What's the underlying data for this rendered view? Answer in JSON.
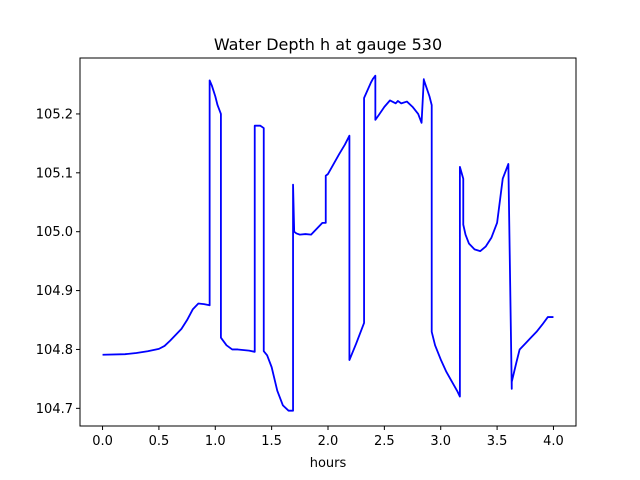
{
  "chart_data": {
    "type": "line",
    "title": "Water Depth h at gauge 530",
    "xlabel": "hours",
    "ylabel": "",
    "xlim": [
      -0.2,
      4.2
    ],
    "ylim": [
      104.67,
      105.295
    ],
    "xticks": [
      0.0,
      0.5,
      1.0,
      1.5,
      2.0,
      2.5,
      3.0,
      3.5,
      4.0
    ],
    "xtick_labels": [
      "0.0",
      "0.5",
      "1.0",
      "1.5",
      "2.0",
      "2.5",
      "3.0",
      "3.5",
      "4.0"
    ],
    "yticks": [
      104.7,
      104.8,
      104.9,
      105.0,
      105.1,
      105.2
    ],
    "ytick_labels": [
      "104.7",
      "104.8",
      "104.9",
      "105.0",
      "105.1",
      "105.2"
    ],
    "grid": false,
    "legend": "none",
    "series": [
      {
        "color": "#0000ff",
        "x": [
          0.0,
          0.2,
          0.3,
          0.4,
          0.5,
          0.55,
          0.6,
          0.65,
          0.7,
          0.75,
          0.8,
          0.85,
          0.9,
          0.95,
          0.95,
          0.97,
          1.0,
          1.02,
          1.05,
          1.05,
          1.1,
          1.15,
          1.2,
          1.3,
          1.35,
          1.35,
          1.4,
          1.43,
          1.43,
          1.46,
          1.5,
          1.55,
          1.6,
          1.65,
          1.69,
          1.69,
          1.7,
          1.72,
          1.75,
          1.8,
          1.85,
          1.9,
          1.95,
          1.98,
          1.98,
          2.0,
          2.05,
          2.1,
          2.15,
          2.19,
          2.19,
          2.25,
          2.32,
          2.32,
          2.35,
          2.38,
          2.4,
          2.42,
          2.42,
          2.45,
          2.5,
          2.55,
          2.6,
          2.62,
          2.65,
          2.7,
          2.75,
          2.8,
          2.83,
          2.85,
          2.85,
          2.9,
          2.92,
          2.92,
          2.95,
          3.0,
          3.05,
          3.1,
          3.15,
          3.17,
          3.17,
          3.2,
          3.2,
          3.22,
          3.25,
          3.3,
          3.35,
          3.4,
          3.45,
          3.5,
          3.55,
          3.6,
          3.6,
          3.63,
          3.63,
          3.67,
          3.7,
          3.75,
          3.8,
          3.85,
          3.9,
          3.95,
          4.0
        ],
        "y": [
          104.791,
          104.792,
          104.794,
          104.797,
          104.801,
          104.806,
          104.815,
          104.825,
          104.835,
          104.85,
          104.868,
          104.878,
          104.877,
          104.875,
          105.257,
          105.248,
          105.23,
          105.215,
          105.2,
          104.82,
          104.807,
          104.8,
          104.8,
          104.798,
          104.796,
          105.18,
          105.18,
          105.176,
          104.797,
          104.79,
          104.77,
          104.73,
          104.705,
          104.696,
          104.696,
          105.08,
          105.0,
          104.997,
          104.995,
          104.996,
          104.995,
          105.005,
          105.015,
          105.015,
          105.095,
          105.098,
          105.115,
          105.132,
          105.148,
          105.163,
          104.782,
          104.81,
          104.845,
          105.227,
          105.24,
          105.253,
          105.26,
          105.265,
          105.19,
          105.198,
          105.212,
          105.223,
          105.218,
          105.222,
          105.218,
          105.221,
          105.212,
          105.2,
          105.185,
          105.259,
          105.258,
          105.23,
          105.215,
          104.83,
          104.807,
          104.783,
          104.762,
          104.745,
          104.728,
          104.72,
          105.11,
          105.09,
          105.012,
          104.995,
          104.98,
          104.97,
          104.967,
          104.975,
          104.99,
          105.015,
          105.09,
          105.115,
          105.115,
          104.733,
          104.745,
          104.777,
          104.8,
          104.81,
          104.82,
          104.83,
          104.842,
          104.855,
          104.855
        ]
      }
    ]
  }
}
